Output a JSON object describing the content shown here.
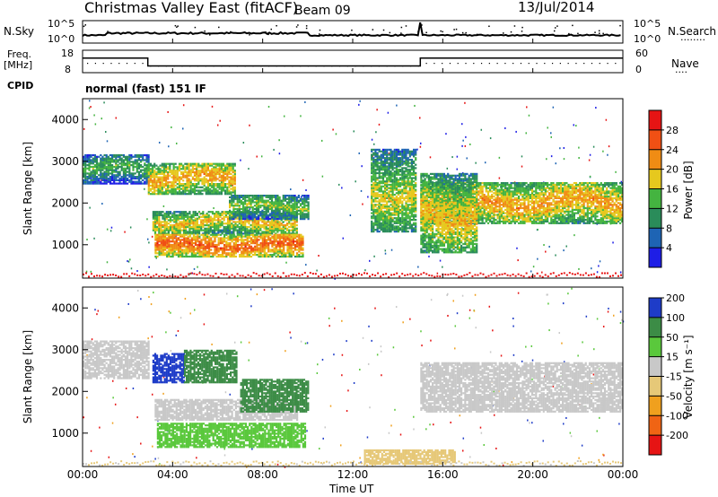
{
  "header": {
    "title": "Christmas Valley East (fitACF)",
    "beam": "Beam 09",
    "date": "13/Jul/2014"
  },
  "top_panels": {
    "nsky_label": "N.Sky",
    "nsearch_label": "N.Search",
    "nsearch_pattern": "········",
    "nave_label": "Nave",
    "nave_pattern": "····",
    "freq_label_1": "Freq.",
    "freq_label_2": "[MHz]",
    "cpid_label": "CPID",
    "cpid_text": "normal (fast) 151 IF",
    "noise_ticks_left": [
      "10^5",
      "10^0"
    ],
    "noise_ticks_right": [
      "10^5",
      "10^0"
    ],
    "freq_ticks": [
      "18",
      "8"
    ],
    "nave_ticks": [
      "60",
      "0"
    ]
  },
  "power_colorbar": {
    "label": "Power [dB]",
    "ticks": [
      "4",
      "8",
      "12",
      "16",
      "20",
      "24",
      "28"
    ]
  },
  "velocity_colorbar": {
    "label": "Velocity [m s⁻¹]",
    "ticks": [
      "-200",
      "-100",
      "-50",
      "-15",
      "15",
      "50",
      "100",
      "200"
    ]
  },
  "axes": {
    "ylabel": "Slant Range [km]",
    "xlabel": "Time UT",
    "y_ticks": [
      "1000",
      "2000",
      "3000",
      "4000"
    ],
    "x_ticks": [
      "00:00",
      "04:00",
      "08:00",
      "12:00",
      "16:00",
      "20:00",
      "00:00"
    ]
  },
  "chart_data": {
    "type": "heatmap",
    "x_unit": "hours UT",
    "xlim": [
      0,
      24
    ],
    "ylim": [
      200,
      4500
    ],
    "frequency_mhz": [
      {
        "from": 0,
        "to": 2.9,
        "value": 14.5
      },
      {
        "from": 2.9,
        "to": 15.0,
        "value": 11
      },
      {
        "from": 15.0,
        "to": 24,
        "value": 14.5
      }
    ],
    "power_colors": [
      "#1e1ee6",
      "#1e64b4",
      "#2a8c5a",
      "#44b440",
      "#e6c81e",
      "#f08c14",
      "#f05014",
      "#e61414"
    ],
    "velocity_colors": [
      "#e61414",
      "#f06414",
      "#f0a01e",
      "#e6c878",
      "#c8c8c8",
      "#5ac83c",
      "#3c8c46",
      "#1e3cc8"
    ],
    "power_regions": [
      {
        "t0": 0,
        "t1": 2.9,
        "r0": 2450,
        "r1": 3150,
        "power": 14
      },
      {
        "t0": 2.9,
        "t1": 6.8,
        "r0": 2200,
        "r1": 2950,
        "power": 22
      },
      {
        "t0": 3.1,
        "t1": 9.5,
        "r0": 1250,
        "r1": 1800,
        "power": 20
      },
      {
        "t0": 3.2,
        "t1": 9.8,
        "r0": 700,
        "r1": 1250,
        "power": 26
      },
      {
        "t0": 6.5,
        "t1": 10.0,
        "r0": 1600,
        "r1": 2200,
        "power": 16
      },
      {
        "t0": 12.8,
        "t1": 14.8,
        "r0": 1300,
        "r1": 3300,
        "power": 18
      },
      {
        "t0": 15.0,
        "t1": 24,
        "r0": 1500,
        "r1": 2500,
        "power": 22
      },
      {
        "t0": 15.0,
        "t1": 17.5,
        "r0": 800,
        "r1": 2700,
        "power": 20
      }
    ],
    "velocity_regions": [
      {
        "t0": 0,
        "t1": 2.9,
        "r0": 2300,
        "r1": 3200,
        "velocity": 0
      },
      {
        "t0": 3.1,
        "t1": 4.5,
        "r0": 2200,
        "r1": 2900,
        "velocity": 180
      },
      {
        "t0": 4.5,
        "t1": 6.8,
        "r0": 2200,
        "r1": 3000,
        "velocity": 70
      },
      {
        "t0": 3.2,
        "t1": 9.5,
        "r0": 1300,
        "r1": 1800,
        "velocity": 0
      },
      {
        "t0": 3.3,
        "t1": 9.9,
        "r0": 650,
        "r1": 1250,
        "velocity": 30
      },
      {
        "t0": 7.0,
        "t1": 10.0,
        "r0": 1500,
        "r1": 2300,
        "velocity": 60
      },
      {
        "t0": 15.0,
        "t1": 24,
        "r0": 1500,
        "r1": 2700,
        "velocity": 0
      },
      {
        "t0": 12.5,
        "t1": 16.5,
        "r0": 250,
        "r1": 600,
        "velocity": -40
      }
    ]
  }
}
